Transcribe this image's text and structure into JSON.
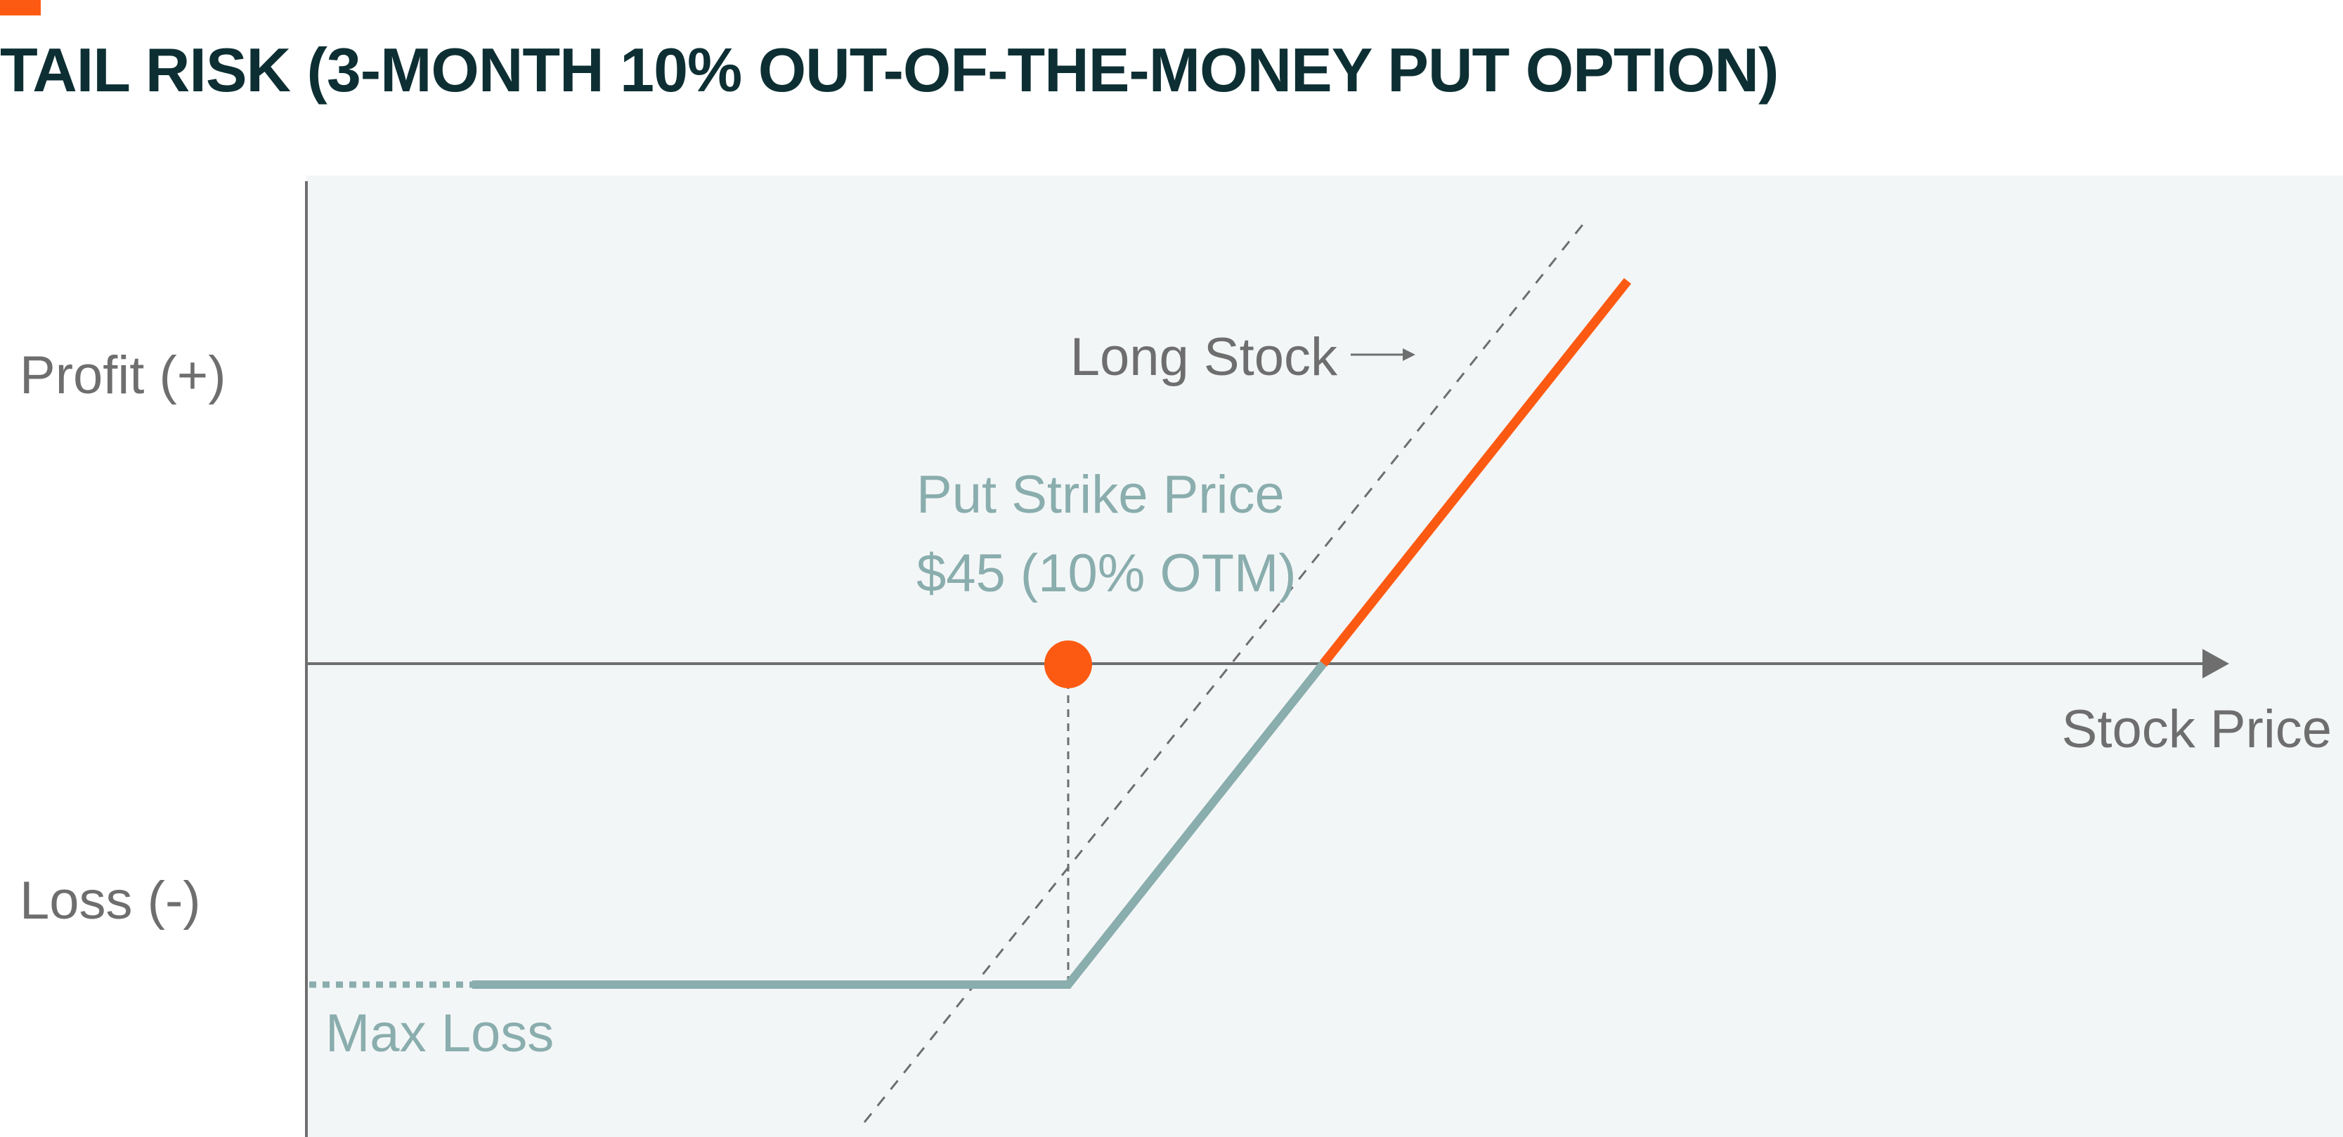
{
  "title": "TAIL RISK (3-MONTH 10% OUT-OF-THE-MONEY PUT OPTION)",
  "colors": {
    "accent": "#fc5a12",
    "title": "#0d2f34",
    "panel_background": "#f3f6f7",
    "axis": "#6e6e6e",
    "label_gray": "#6e6e6e",
    "label_teal": "#8aadad",
    "protected_line": "#8aadad",
    "upside_line": "#fc5a12",
    "long_stock_line": "#6e6e6e"
  },
  "labels": {
    "profit": "Profit (+)",
    "loss": "Loss (-)",
    "x_axis": "Stock Price",
    "long_stock": "Long Stock",
    "strike_line1": "Put Strike Price",
    "strike_line2": "$45 (10% OTM)",
    "max_loss": "Max Loss"
  },
  "icons": {
    "long_stock_pointer": "arrow-right-icon",
    "x_axis_end": "arrowhead-icon"
  }
}
